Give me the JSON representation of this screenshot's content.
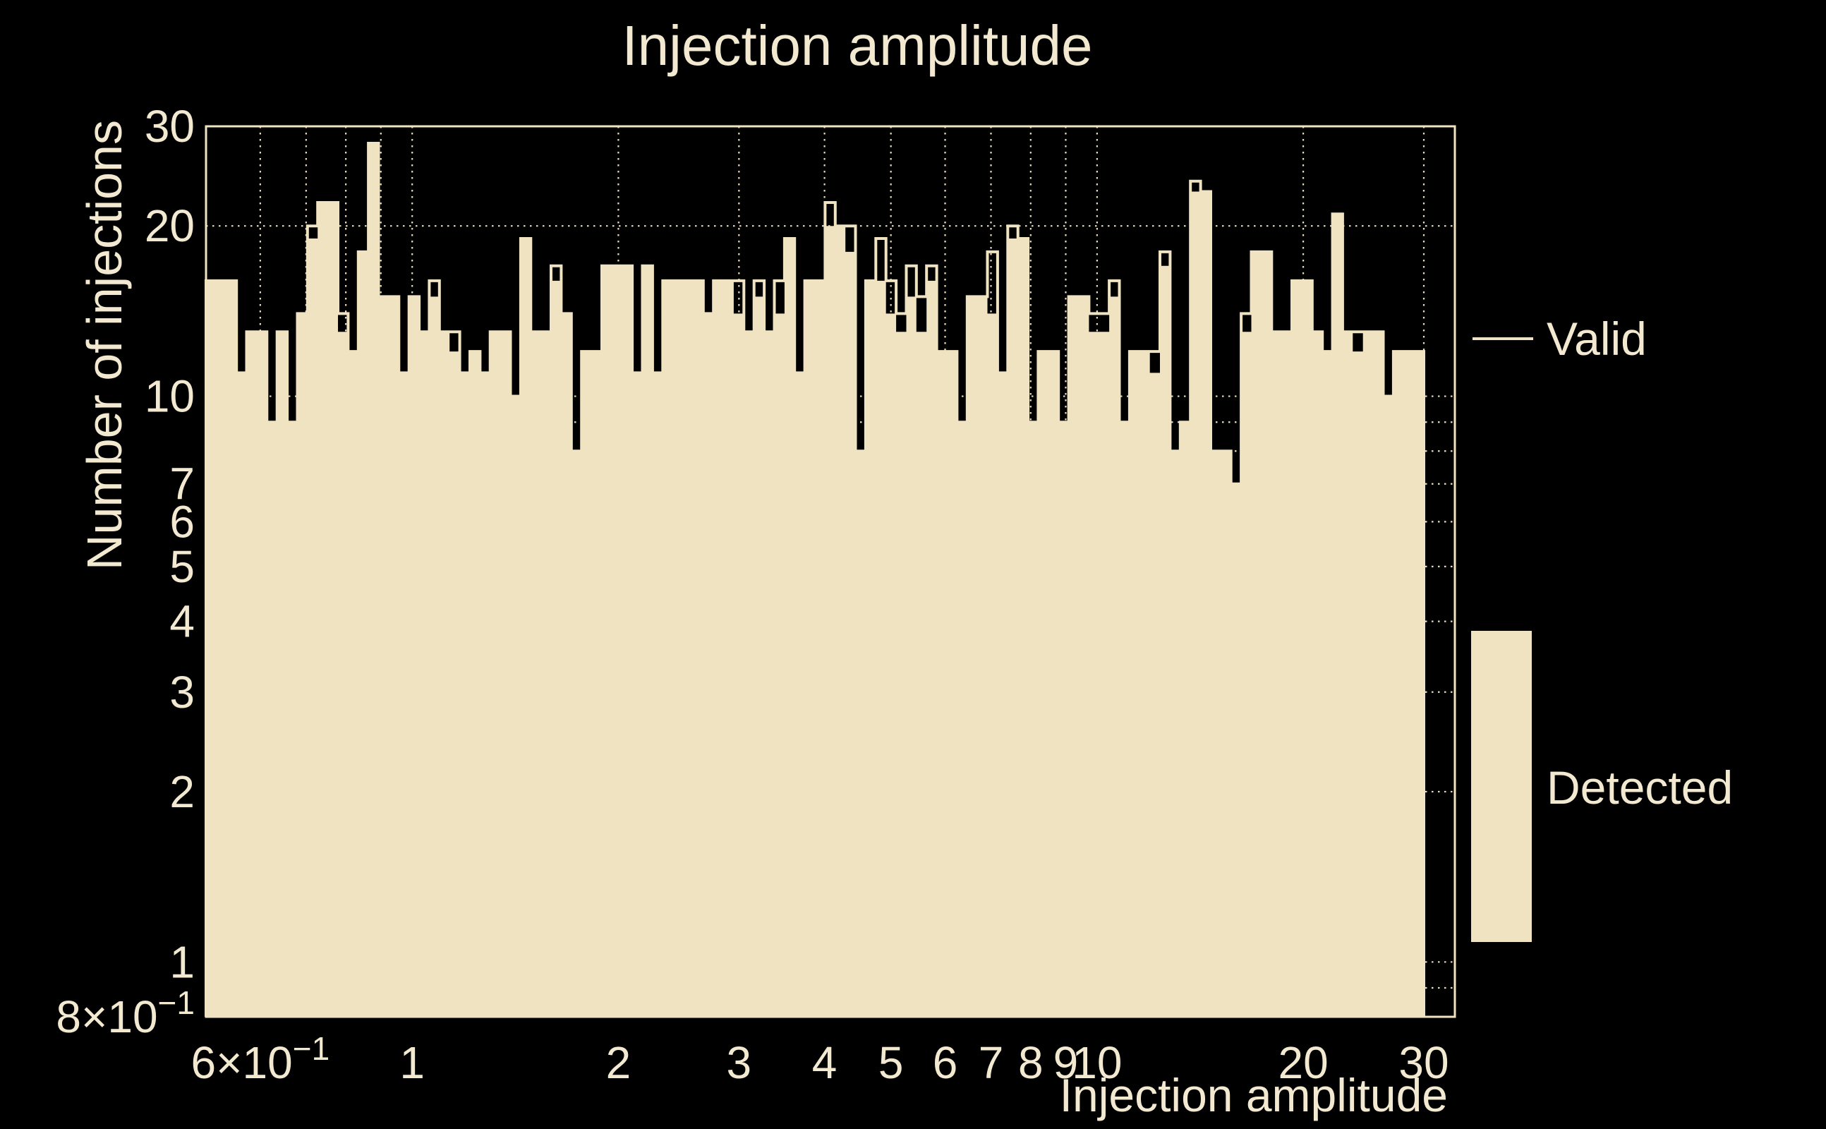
{
  "header": {
    "title": "Injection amplitude"
  },
  "axes": {
    "x_title": "Injection amplitude",
    "y_title": "Number of injections"
  },
  "legend": {
    "valid_label": "Valid",
    "detected_label": "Detected"
  },
  "chart_data": {
    "type": "bar",
    "subtype": "log-log histogram, filled 'Detected' bars with 'Valid' step outline",
    "title": "Injection amplitude",
    "xlabel": "Injection amplitude",
    "ylabel": "Number of injections",
    "x_scale": "log",
    "y_scale": "log",
    "x_range": [
      0.5,
      33.3
    ],
    "y_range": [
      0.8,
      30
    ],
    "grid": "dotted",
    "x_gridlines": [
      0.6,
      0.7,
      0.8,
      0.9,
      1,
      2,
      3,
      4,
      5,
      6,
      7,
      8,
      9,
      10,
      20,
      30
    ],
    "y_gridlines": [
      0.8,
      0.9,
      1,
      2,
      3,
      4,
      5,
      6,
      7,
      8,
      9,
      10,
      20,
      30
    ],
    "x_ticks": [
      {
        "v": 0.6,
        "label": "6×10",
        "sup": "−1"
      },
      {
        "v": 1,
        "label": "1"
      },
      {
        "v": 2,
        "label": "2"
      },
      {
        "v": 3,
        "label": "3"
      },
      {
        "v": 4,
        "label": "4"
      },
      {
        "v": 5,
        "label": "5"
      },
      {
        "v": 6,
        "label": "6"
      },
      {
        "v": 7,
        "label": "7"
      },
      {
        "v": 8,
        "label": "8"
      },
      {
        "v": 9,
        "label": "9"
      },
      {
        "v": 10,
        "label": "10"
      },
      {
        "v": 20,
        "label": "20"
      },
      {
        "v": 30,
        "label": "30"
      }
    ],
    "y_ticks": [
      {
        "v": 30,
        "label": "30"
      },
      {
        "v": 20,
        "label": "20"
      },
      {
        "v": 10,
        "label": "10"
      },
      {
        "v": 7,
        "label": "7"
      },
      {
        "v": 6,
        "label": "6"
      },
      {
        "v": 5,
        "label": "5"
      },
      {
        "v": 4,
        "label": "4"
      },
      {
        "v": 3,
        "label": "3"
      },
      {
        "v": 2,
        "label": "2"
      },
      {
        "v": 1,
        "label": "1"
      },
      {
        "v": 0.8,
        "label": "8×10",
        "sup": "−1"
      }
    ],
    "bins": {
      "count": 120,
      "low": 0.5,
      "high": 30,
      "spacing": "log"
    },
    "legend_entries": [
      {
        "name": "Valid",
        "style": "line"
      },
      {
        "name": "Detected",
        "style": "fill"
      }
    ],
    "series": [
      {
        "name": "Detected",
        "render": "filled-bars",
        "values": [
          16,
          16,
          16,
          11,
          13,
          13,
          9,
          13,
          9,
          14,
          19,
          22,
          22,
          13,
          12,
          18,
          28,
          15,
          15,
          11,
          15,
          13,
          15,
          13,
          12,
          11,
          12,
          11,
          13,
          13,
          10,
          19,
          13,
          13,
          16,
          14,
          8,
          12,
          12,
          17,
          17,
          17,
          11,
          17,
          11,
          16,
          16,
          16,
          16,
          14,
          16,
          16,
          14,
          13,
          15,
          13,
          14,
          19,
          11,
          16,
          16,
          20,
          20,
          18,
          8,
          16,
          16,
          14,
          13,
          15,
          13,
          16,
          12,
          12,
          9,
          15,
          15,
          14,
          11,
          19,
          19,
          9,
          12,
          12,
          9,
          15,
          15,
          13,
          13,
          15,
          9,
          12,
          12,
          11,
          17,
          8,
          9,
          23,
          23,
          8,
          8,
          7,
          13,
          18,
          18,
          13,
          13,
          16,
          16,
          13,
          12,
          21,
          13,
          12,
          13,
          13,
          10,
          12,
          12,
          12
        ]
      },
      {
        "name": "Valid",
        "render": "step-line",
        "values": [
          16,
          16,
          16,
          11,
          13,
          13,
          9,
          13,
          9,
          14,
          20,
          22,
          22,
          14,
          12,
          18,
          28,
          15,
          15,
          11,
          15,
          13,
          16,
          13,
          13,
          11,
          12,
          11,
          13,
          13,
          10,
          19,
          13,
          13,
          17,
          14,
          8,
          12,
          12,
          17,
          17,
          17,
          11,
          17,
          11,
          16,
          16,
          16,
          16,
          14,
          16,
          16,
          16,
          13,
          16,
          13,
          16,
          19,
          11,
          16,
          16,
          22,
          20,
          20,
          8,
          16,
          19,
          16,
          14,
          17,
          15,
          17,
          12,
          12,
          9,
          15,
          15,
          18,
          11,
          20,
          19,
          9,
          12,
          12,
          9,
          15,
          15,
          14,
          14,
          16,
          9,
          12,
          12,
          12,
          18,
          8,
          9,
          24,
          23,
          8,
          8,
          7,
          14,
          18,
          18,
          13,
          13,
          16,
          16,
          13,
          12,
          21,
          13,
          13,
          13,
          13,
          10,
          12,
          12,
          12
        ]
      }
    ],
    "colors": {
      "background": "#000000",
      "fill": "#efe3c1",
      "line": "#efe3c1",
      "grid": "#e8ddbb",
      "text": "#f2e9d0",
      "frame": "#efe3c1"
    },
    "legend_position": "right"
  }
}
